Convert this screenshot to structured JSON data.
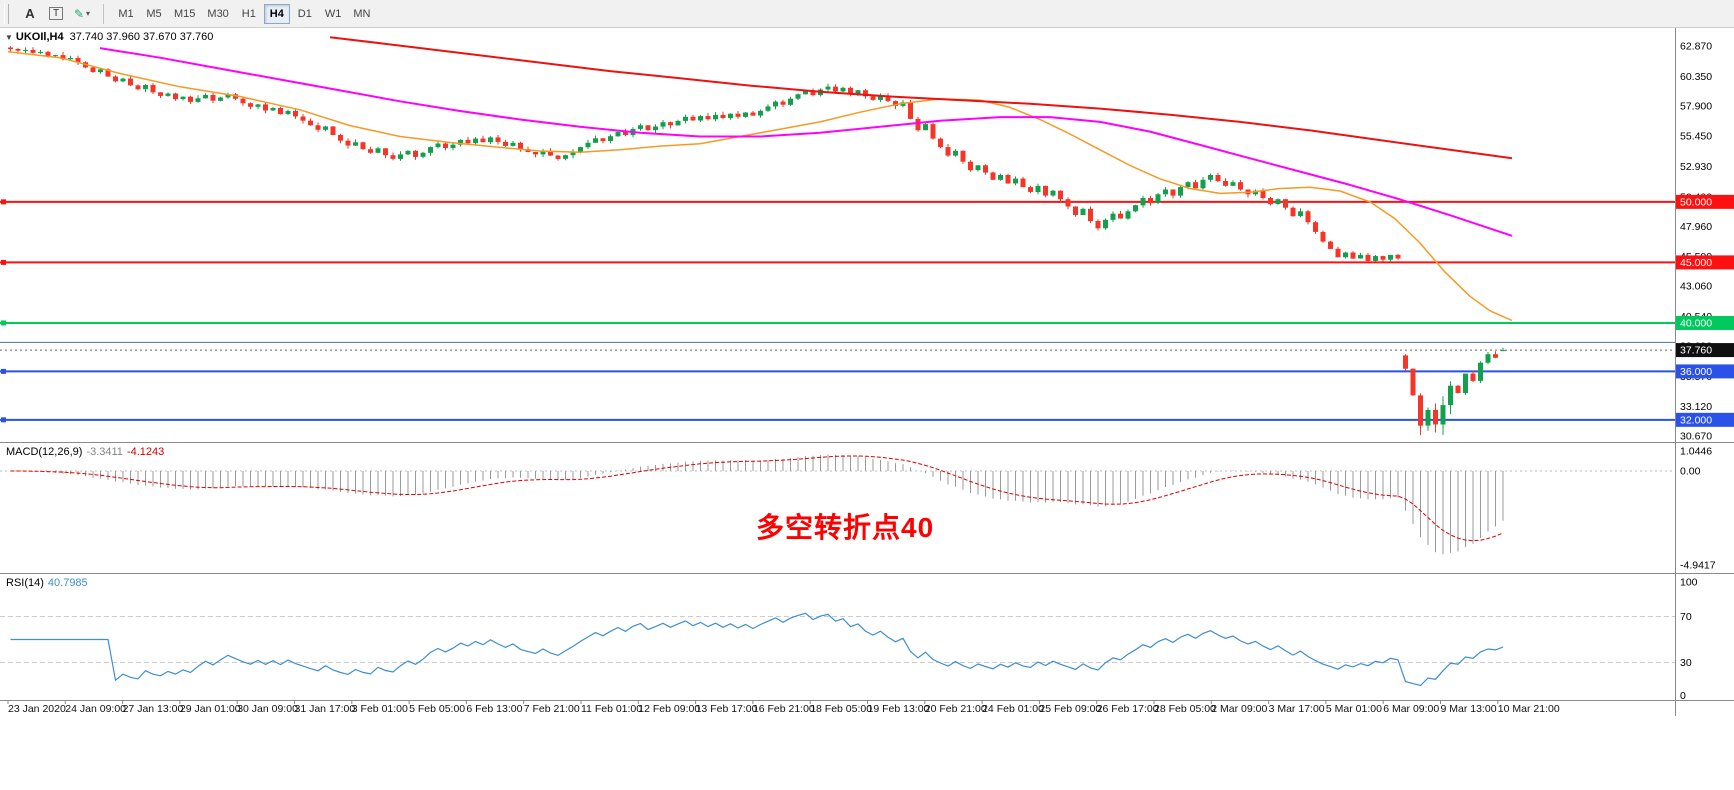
{
  "toolbar": {
    "tools": {
      "a_label": "A",
      "t_label": "T"
    },
    "timeframes": [
      "M1",
      "M5",
      "M15",
      "M30",
      "H1",
      "H4",
      "D1",
      "W1",
      "MN"
    ],
    "selected_timeframe": "H4"
  },
  "chart": {
    "title": "UKOIl,H4",
    "ohlc": "37.740 37.960 37.670 37.760",
    "current_price": "37.760",
    "axis_labels": [
      "62.870",
      "60.350",
      "57.900",
      "55.450",
      "52.930",
      "50.400",
      "47.960",
      "45.500",
      "43.060",
      "40.540",
      "38.090",
      "35.570",
      "33.120",
      "30.670"
    ],
    "annotation": {
      "text": "多空转折点40",
      "color": "#ff0000"
    },
    "hlines": [
      {
        "price": 50.0,
        "label": "50.000",
        "color": "#ff1010",
        "width": 2
      },
      {
        "price": 45.0,
        "label": "45.000",
        "color": "#ff1010",
        "width": 2
      },
      {
        "price": 40.0,
        "label": "40.000",
        "color": "#00ca5e",
        "width": 2
      },
      {
        "price": 38.4,
        "label": "",
        "color": "#51709e",
        "width": 1
      },
      {
        "price": 36.0,
        "label": "36.000",
        "color": "#2a52e8",
        "width": 2
      },
      {
        "price": 32.0,
        "label": "32.000",
        "color": "#2a52e8",
        "width": 2
      }
    ]
  },
  "macd": {
    "name": "MACD(12,26,9)",
    "main_value": "-3.3411",
    "signal_value": "-4.1243",
    "axis": [
      "1.0446",
      "0.00",
      "-4.9417"
    ]
  },
  "rsi": {
    "name": "RSI(14)",
    "value": "40.7985",
    "axis": [
      "100",
      "70",
      "30",
      "0"
    ]
  },
  "time_axis": [
    "23 Jan 2020",
    "24 Jan 09:00",
    "27 Jan 13:00",
    "29 Jan 01:00",
    "30 Jan 09:00",
    "31 Jan 17:00",
    "3 Feb 01:00",
    "5 Feb 05:00",
    "6 Feb 13:00",
    "7 Feb 21:00",
    "11 Feb 01:00",
    "12 Feb 09:00",
    "13 Feb 17:00",
    "16 Feb 21:00",
    "18 Feb 05:00",
    "19 Feb 13:00",
    "20 Feb 21:00",
    "24 Feb 01:00",
    "25 Feb 09:00",
    "26 Feb 17:00",
    "28 Feb 05:00",
    "2 Mar 09:00",
    "3 Mar 17:00",
    "5 Mar 01:00",
    "6 Mar 09:00",
    "9 Mar 13:00",
    "10 Mar 21:00"
  ],
  "chart_data": {
    "type": "candlestick",
    "symbol": "UKOIl",
    "timeframe": "H4",
    "x_range": [
      "23 Jan 2020",
      "10 Mar 2020"
    ],
    "y_range": [
      30.0,
      63.6
    ],
    "last_ohlc": {
      "open": 37.74,
      "high": 37.96,
      "low": 37.67,
      "close": 37.76
    },
    "up_color": "#12a04c",
    "down_color": "#f53527",
    "closes": [
      62.62,
      62.48,
      62.55,
      62.3,
      62.38,
      62.05,
      62.12,
      61.78,
      61.88,
      61.52,
      61.1,
      60.72,
      60.95,
      60.35,
      59.95,
      60.18,
      59.62,
      59.3,
      59.65,
      59.05,
      58.75,
      58.95,
      58.48,
      58.68,
      58.25,
      58.55,
      58.82,
      58.35,
      58.62,
      58.88,
      58.52,
      58.15,
      57.85,
      58.05,
      57.55,
      57.75,
      57.25,
      57.5,
      57.05,
      56.7,
      56.32,
      55.95,
      56.22,
      55.52,
      55.05,
      54.65,
      54.92,
      54.35,
      54.05,
      54.42,
      53.85,
      53.55,
      53.92,
      54.22,
      53.72,
      54.05,
      54.52,
      54.82,
      54.45,
      54.72,
      55.12,
      54.85,
      55.22,
      54.92,
      55.32,
      54.95,
      54.62,
      54.88,
      54.35,
      54.12,
      53.92,
      54.22,
      53.82,
      53.55,
      53.85,
      54.15,
      54.52,
      54.88,
      55.25,
      55.02,
      55.42,
      55.78,
      55.52,
      56.02,
      56.32,
      55.92,
      56.22,
      56.58,
      56.32,
      56.68,
      57.02,
      56.72,
      57.08,
      56.82,
      57.18,
      56.92,
      57.28,
      57.02,
      57.38,
      57.12,
      57.52,
      57.88,
      58.28,
      58.02,
      58.52,
      58.88,
      59.18,
      58.82,
      59.28,
      59.52,
      59.12,
      59.42,
      58.92,
      59.22,
      58.72,
      58.42,
      58.78,
      58.32,
      57.92,
      58.22,
      56.85,
      55.92,
      56.42,
      55.22,
      54.52,
      53.82,
      54.22,
      53.32,
      52.62,
      53.02,
      52.42,
      51.82,
      52.22,
      51.52,
      51.92,
      51.22,
      50.82,
      51.32,
      50.52,
      50.92,
      50.22,
      49.62,
      48.92,
      49.42,
      48.42,
      47.82,
      48.52,
      49.02,
      48.62,
      49.22,
      49.72,
      50.32,
      49.92,
      50.62,
      51.02,
      50.52,
      51.22,
      51.62,
      51.12,
      51.82,
      52.22,
      51.72,
      51.32,
      51.62,
      51.02,
      50.62,
      50.92,
      50.32,
      49.82,
      50.22,
      49.52,
      48.82,
      49.22,
      48.32,
      47.52,
      46.72,
      46.12,
      45.42,
      45.82,
      45.32,
      45.62,
      45.12,
      45.52,
      45.22,
      45.62,
      45.32,
      36.22,
      34.02,
      31.52,
      32.82,
      31.62,
      33.22,
      34.82,
      34.22,
      35.82,
      35.22,
      36.72,
      37.42,
      37.12,
      37.76
    ],
    "moving_averages": [
      {
        "name": "fast-ema-orange",
        "color": "#f59a23",
        "width": 1.5,
        "points": [
          [
            8,
            62.4
          ],
          [
            60,
            61.9
          ],
          [
            120,
            60.6
          ],
          [
            180,
            59.5
          ],
          [
            240,
            58.7
          ],
          [
            300,
            57.6
          ],
          [
            350,
            56.3
          ],
          [
            400,
            55.4
          ],
          [
            450,
            54.9
          ],
          [
            500,
            54.5
          ],
          [
            540,
            54.2
          ],
          [
            580,
            54.1
          ],
          [
            620,
            54.3
          ],
          [
            660,
            54.6
          ],
          [
            700,
            54.8
          ],
          [
            740,
            55.4
          ],
          [
            780,
            56.0
          ],
          [
            820,
            56.6
          ],
          [
            860,
            57.4
          ],
          [
            900,
            58.1
          ],
          [
            940,
            58.5
          ],
          [
            980,
            58.4
          ],
          [
            1010,
            57.8
          ],
          [
            1040,
            56.8
          ],
          [
            1070,
            55.6
          ],
          [
            1100,
            54.3
          ],
          [
            1130,
            53.0
          ],
          [
            1160,
            51.9
          ],
          [
            1190,
            51.1
          ],
          [
            1220,
            50.7
          ],
          [
            1250,
            50.8
          ],
          [
            1280,
            51.1
          ],
          [
            1310,
            51.2
          ],
          [
            1340,
            50.9
          ],
          [
            1370,
            50.0
          ],
          [
            1395,
            48.6
          ],
          [
            1420,
            46.6
          ],
          [
            1445,
            44.2
          ],
          [
            1470,
            42.2
          ],
          [
            1490,
            41.0
          ],
          [
            1512,
            40.2
          ]
        ]
      },
      {
        "name": "mid-ema-magenta",
        "color": "#ff00ff",
        "width": 2,
        "points": [
          [
            100,
            62.7
          ],
          [
            160,
            61.9
          ],
          [
            220,
            61.0
          ],
          [
            280,
            60.1
          ],
          [
            340,
            59.2
          ],
          [
            400,
            58.3
          ],
          [
            460,
            57.5
          ],
          [
            520,
            56.8
          ],
          [
            580,
            56.2
          ],
          [
            640,
            55.7
          ],
          [
            700,
            55.4
          ],
          [
            760,
            55.4
          ],
          [
            820,
            55.7
          ],
          [
            880,
            56.2
          ],
          [
            940,
            56.7
          ],
          [
            1000,
            57.0
          ],
          [
            1050,
            57.0
          ],
          [
            1100,
            56.6
          ],
          [
            1150,
            55.8
          ],
          [
            1200,
            54.7
          ],
          [
            1250,
            53.6
          ],
          [
            1300,
            52.5
          ],
          [
            1350,
            51.4
          ],
          [
            1400,
            50.2
          ],
          [
            1450,
            48.9
          ],
          [
            1512,
            47.2
          ]
        ]
      },
      {
        "name": "slow-ema-red",
        "color": "#ee1111",
        "width": 2,
        "points": [
          [
            330,
            63.6
          ],
          [
            400,
            62.9
          ],
          [
            470,
            62.2
          ],
          [
            540,
            61.5
          ],
          [
            610,
            60.8
          ],
          [
            680,
            60.2
          ],
          [
            750,
            59.6
          ],
          [
            820,
            59.1
          ],
          [
            890,
            58.7
          ],
          [
            960,
            58.4
          ],
          [
            1030,
            58.1
          ],
          [
            1100,
            57.7
          ],
          [
            1170,
            57.2
          ],
          [
            1240,
            56.6
          ],
          [
            1310,
            55.9
          ],
          [
            1380,
            55.1
          ],
          [
            1450,
            54.3
          ],
          [
            1512,
            53.6
          ]
        ]
      }
    ],
    "indicators": {
      "macd": {
        "params": [
          12,
          26,
          9
        ],
        "last_main": -3.3411,
        "last_signal": -4.1243,
        "axis_max": 1.0446,
        "axis_min": -4.9417
      },
      "rsi": {
        "period": 14,
        "last": 40.7985,
        "levels": [
          70,
          30
        ]
      }
    }
  }
}
